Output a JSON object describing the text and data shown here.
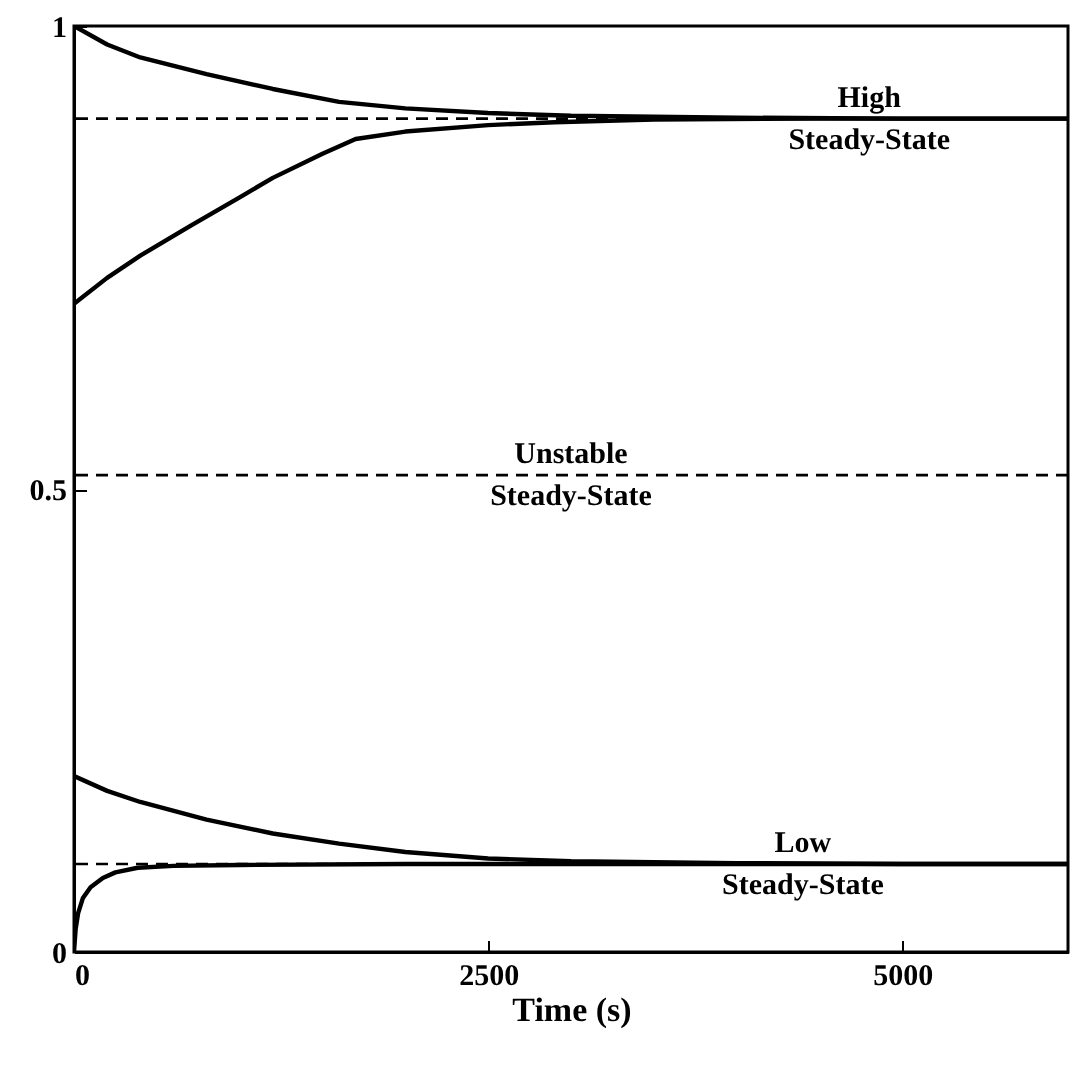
{
  "chart_data": {
    "type": "line",
    "xlabel": "Time (s)",
    "xlim": [
      0,
      6000
    ],
    "ylim": [
      0,
      1
    ],
    "xticks": [
      0,
      2500,
      5000
    ],
    "yticks": [
      0,
      0.5,
      1
    ],
    "line_style": "solid",
    "series": [
      {
        "color": "#000000",
        "x": [
          0,
          200,
          400,
          800,
          1200,
          1600,
          2000,
          2500,
          3000,
          4000,
          5000,
          6000
        ],
        "values": [
          1.0,
          0.98,
          0.966,
          0.948,
          0.932,
          0.918,
          0.911,
          0.906,
          0.903,
          0.901,
          0.9,
          0.9
        ]
      },
      {
        "color": "#000000",
        "x": [
          0,
          200,
          400,
          700,
          1000,
          1200,
          1500,
          1700,
          2000,
          2500,
          2900,
          3500,
          4500,
          6000
        ],
        "values": [
          0.7,
          0.728,
          0.752,
          0.784,
          0.815,
          0.836,
          0.862,
          0.878,
          0.886,
          0.893,
          0.896,
          0.899,
          0.9,
          0.9
        ]
      },
      {
        "color": "#000000",
        "x": [
          0,
          200,
          400,
          800,
          1200,
          1600,
          2000,
          2500,
          3000,
          4000,
          5000,
          6000
        ],
        "values": [
          0.19,
          0.174,
          0.162,
          0.143,
          0.128,
          0.117,
          0.108,
          0.101,
          0.098,
          0.096,
          0.095,
          0.095
        ]
      },
      {
        "color": "#000000",
        "x": [
          0,
          10,
          25,
          53,
          100,
          174,
          250,
          385,
          600,
          1000,
          2000,
          4000,
          6000
        ],
        "values": [
          0,
          0.025,
          0.042,
          0.058,
          0.07,
          0.08,
          0.086,
          0.091,
          0.093,
          0.094,
          0.095,
          0.095,
          0.095
        ]
      }
    ],
    "ref_lines": [
      {
        "axis": "y",
        "value": 0.9,
        "line_style": "dashed",
        "color": "#000000"
      },
      {
        "axis": "y",
        "value": 0.515,
        "line_style": "dashed",
        "color": "#000000"
      },
      {
        "axis": "y",
        "value": 0.095,
        "line_style": "dashed",
        "color": "#000000"
      }
    ],
    "annotations": [
      {
        "text": "High Steady-State",
        "x": 4800,
        "y": 0.9
      },
      {
        "text": "Unstable Steady-State",
        "x": 3000,
        "y": 0.515
      },
      {
        "text": "Low Steady-State",
        "x": 4400,
        "y": 0.095
      }
    ]
  }
}
